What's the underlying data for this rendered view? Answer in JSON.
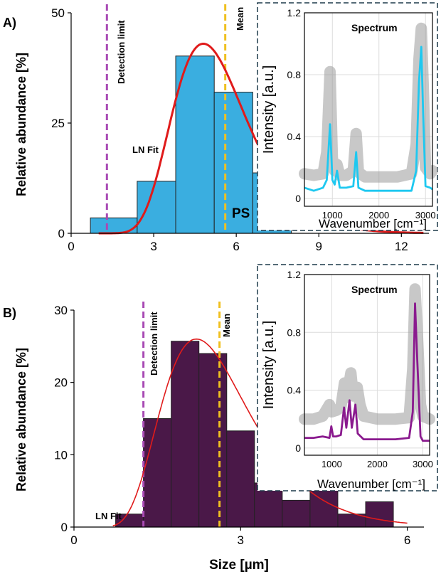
{
  "chart_data": [
    {
      "panel_label": "A)",
      "type": "bar",
      "xlabel": "",
      "ylabel": "Relative abundance [%]",
      "xlim": [
        0,
        13
      ],
      "ylim": [
        0,
        50
      ],
      "xticks": [
        0,
        3,
        6,
        9,
        12
      ],
      "yticks": [
        0,
        25,
        50
      ],
      "bar_color": "#3aaee0",
      "bars": [
        {
          "x0": 0.7,
          "x1": 2.4,
          "value": 3.5
        },
        {
          "x0": 2.4,
          "x1": 3.8,
          "value": 11.8
        },
        {
          "x0": 3.8,
          "x1": 5.2,
          "value": 40.2
        },
        {
          "x0": 5.2,
          "x1": 6.6,
          "value": 32.0
        },
        {
          "x0": 6.6,
          "x1": 8.0,
          "value": 13.7
        }
      ],
      "fit": {
        "label": "LN Fit",
        "color": "#e01b1b",
        "mu": 1.648,
        "sigma": 0.28,
        "peak": 43.0,
        "x_start": 1.0,
        "x_end": 12.8
      },
      "vlines": [
        {
          "x": 1.3,
          "label": "Detection limit",
          "color": "#a84ab4"
        },
        {
          "x": 5.6,
          "label": "Mean",
          "color": "#f0c020"
        }
      ],
      "annotation": "PS",
      "inset": {
        "title": "Spectrum",
        "ylabel": "Intensity [a.u.]",
        "xlabel": "Wavenumber [cm⁻¹]",
        "xlim": [
          400,
          3150
        ],
        "ylim": [
          -0.05,
          1.2
        ],
        "xticks": [
          1000,
          2000,
          3000
        ],
        "yticks": [
          0,
          0.4,
          0.8,
          1.2
        ],
        "line_color": "#1ec8f0",
        "reference_color": "#9a9a9a",
        "reference_points": [
          [
            400,
            0.16
          ],
          [
            600,
            0.15
          ],
          [
            800,
            0.16
          ],
          [
            880,
            0.3
          ],
          [
            950,
            0.82
          ],
          [
            1000,
            0.26
          ],
          [
            1050,
            0.18
          ],
          [
            1100,
            0.22
          ],
          [
            1160,
            0.15
          ],
          [
            1300,
            0.15
          ],
          [
            1450,
            0.18
          ],
          [
            1510,
            0.42
          ],
          [
            1560,
            0.17
          ],
          [
            1700,
            0.14
          ],
          [
            2000,
            0.14
          ],
          [
            2400,
            0.14
          ],
          [
            2700,
            0.16
          ],
          [
            2800,
            0.35
          ],
          [
            2860,
            0.9
          ],
          [
            2910,
            1.1
          ],
          [
            2950,
            0.75
          ],
          [
            3000,
            0.2
          ],
          [
            3100,
            0.16
          ],
          [
            3150,
            0.18
          ]
        ],
        "sample_points": [
          [
            400,
            0.07
          ],
          [
            600,
            0.05
          ],
          [
            800,
            0.07
          ],
          [
            880,
            0.12
          ],
          [
            950,
            0.48
          ],
          [
            1000,
            0.12
          ],
          [
            1050,
            0.09
          ],
          [
            1100,
            0.18
          ],
          [
            1160,
            0.07
          ],
          [
            1300,
            0.07
          ],
          [
            1450,
            0.08
          ],
          [
            1510,
            0.3
          ],
          [
            1560,
            0.07
          ],
          [
            1700,
            0.05
          ],
          [
            2000,
            0.05
          ],
          [
            2400,
            0.05
          ],
          [
            2700,
            0.05
          ],
          [
            2800,
            0.18
          ],
          [
            2860,
            0.75
          ],
          [
            2910,
            0.98
          ],
          [
            2950,
            0.55
          ],
          [
            3000,
            0.08
          ],
          [
            3100,
            0.07
          ],
          [
            3150,
            0.06
          ]
        ]
      }
    },
    {
      "panel_label": "B)",
      "type": "bar",
      "xlabel": "Size [µm]",
      "ylabel": "Relative abundance [%]",
      "xlim": [
        0,
        6.3
      ],
      "ylim": [
        0,
        30
      ],
      "xticks": [
        0,
        3,
        6
      ],
      "yticks": [
        0,
        10,
        20,
        30
      ],
      "bar_color": "#4a1848",
      "bars": [
        {
          "x0": 0.75,
          "x1": 1.25,
          "value": 1.8
        },
        {
          "x0": 1.25,
          "x1": 1.75,
          "value": 15.0
        },
        {
          "x0": 1.75,
          "x1": 2.25,
          "value": 25.7
        },
        {
          "x0": 2.25,
          "x1": 2.75,
          "value": 24.0
        },
        {
          "x0": 2.75,
          "x1": 3.25,
          "value": 13.3
        },
        {
          "x0": 3.25,
          "x1": 3.75,
          "value": 6.1
        },
        {
          "x0": 3.75,
          "x1": 4.25,
          "value": 3.7
        },
        {
          "x0": 4.25,
          "x1": 4.75,
          "value": 5.2
        },
        {
          "x0": 4.75,
          "x1": 5.25,
          "value": 1.8
        },
        {
          "x0": 5.25,
          "x1": 5.75,
          "value": 3.5
        }
      ],
      "fit": {
        "label": "LN Fit",
        "color": "#e01b1b",
        "mu": 0.92,
        "sigma": 0.36,
        "peak": 26.0,
        "x_start": 0.7,
        "x_end": 6.0
      },
      "vlines": [
        {
          "x": 1.25,
          "label": "Detection limit",
          "color": "#a84ab4"
        },
        {
          "x": 2.62,
          "label": "Mean",
          "color": "#f0c020"
        }
      ],
      "annotation": "",
      "inset": {
        "title": "Spectrum",
        "ylabel": "Intensity [a.u.]",
        "xlabel": "Wavenumber [cm⁻¹]",
        "xlim": [
          400,
          3150
        ],
        "ylim": [
          -0.05,
          1.2
        ],
        "xticks": [
          1000,
          2000,
          3000
        ],
        "yticks": [
          0,
          0.4,
          0.8,
          1.2
        ],
        "line_color": "#8a1a8e",
        "reference_color": "#9a9a9a",
        "reference_points": [
          [
            400,
            0.2
          ],
          [
            600,
            0.2
          ],
          [
            800,
            0.22
          ],
          [
            950,
            0.3
          ],
          [
            1000,
            0.25
          ],
          [
            1100,
            0.26
          ],
          [
            1200,
            0.28
          ],
          [
            1280,
            0.45
          ],
          [
            1330,
            0.35
          ],
          [
            1420,
            0.52
          ],
          [
            1470,
            0.36
          ],
          [
            1560,
            0.42
          ],
          [
            1620,
            0.3
          ],
          [
            1700,
            0.22
          ],
          [
            2000,
            0.2
          ],
          [
            2400,
            0.2
          ],
          [
            2700,
            0.21
          ],
          [
            2780,
            0.55
          ],
          [
            2830,
            1.1
          ],
          [
            2880,
            0.8
          ],
          [
            2950,
            0.3
          ],
          [
            3000,
            0.22
          ],
          [
            3150,
            0.2
          ]
        ],
        "sample_points": [
          [
            400,
            0.07
          ],
          [
            600,
            0.07
          ],
          [
            800,
            0.08
          ],
          [
            950,
            0.07
          ],
          [
            990,
            0.15
          ],
          [
            1030,
            0.08
          ],
          [
            1100,
            0.08
          ],
          [
            1200,
            0.09
          ],
          [
            1270,
            0.28
          ],
          [
            1320,
            0.14
          ],
          [
            1390,
            0.33
          ],
          [
            1440,
            0.14
          ],
          [
            1520,
            0.3
          ],
          [
            1570,
            0.1
          ],
          [
            1700,
            0.06
          ],
          [
            2000,
            0.06
          ],
          [
            2400,
            0.06
          ],
          [
            2700,
            0.07
          ],
          [
            2780,
            0.25
          ],
          [
            2830,
            1.0
          ],
          [
            2880,
            0.6
          ],
          [
            2950,
            0.08
          ],
          [
            3000,
            0.05
          ],
          [
            3150,
            0.05
          ]
        ]
      }
    }
  ]
}
